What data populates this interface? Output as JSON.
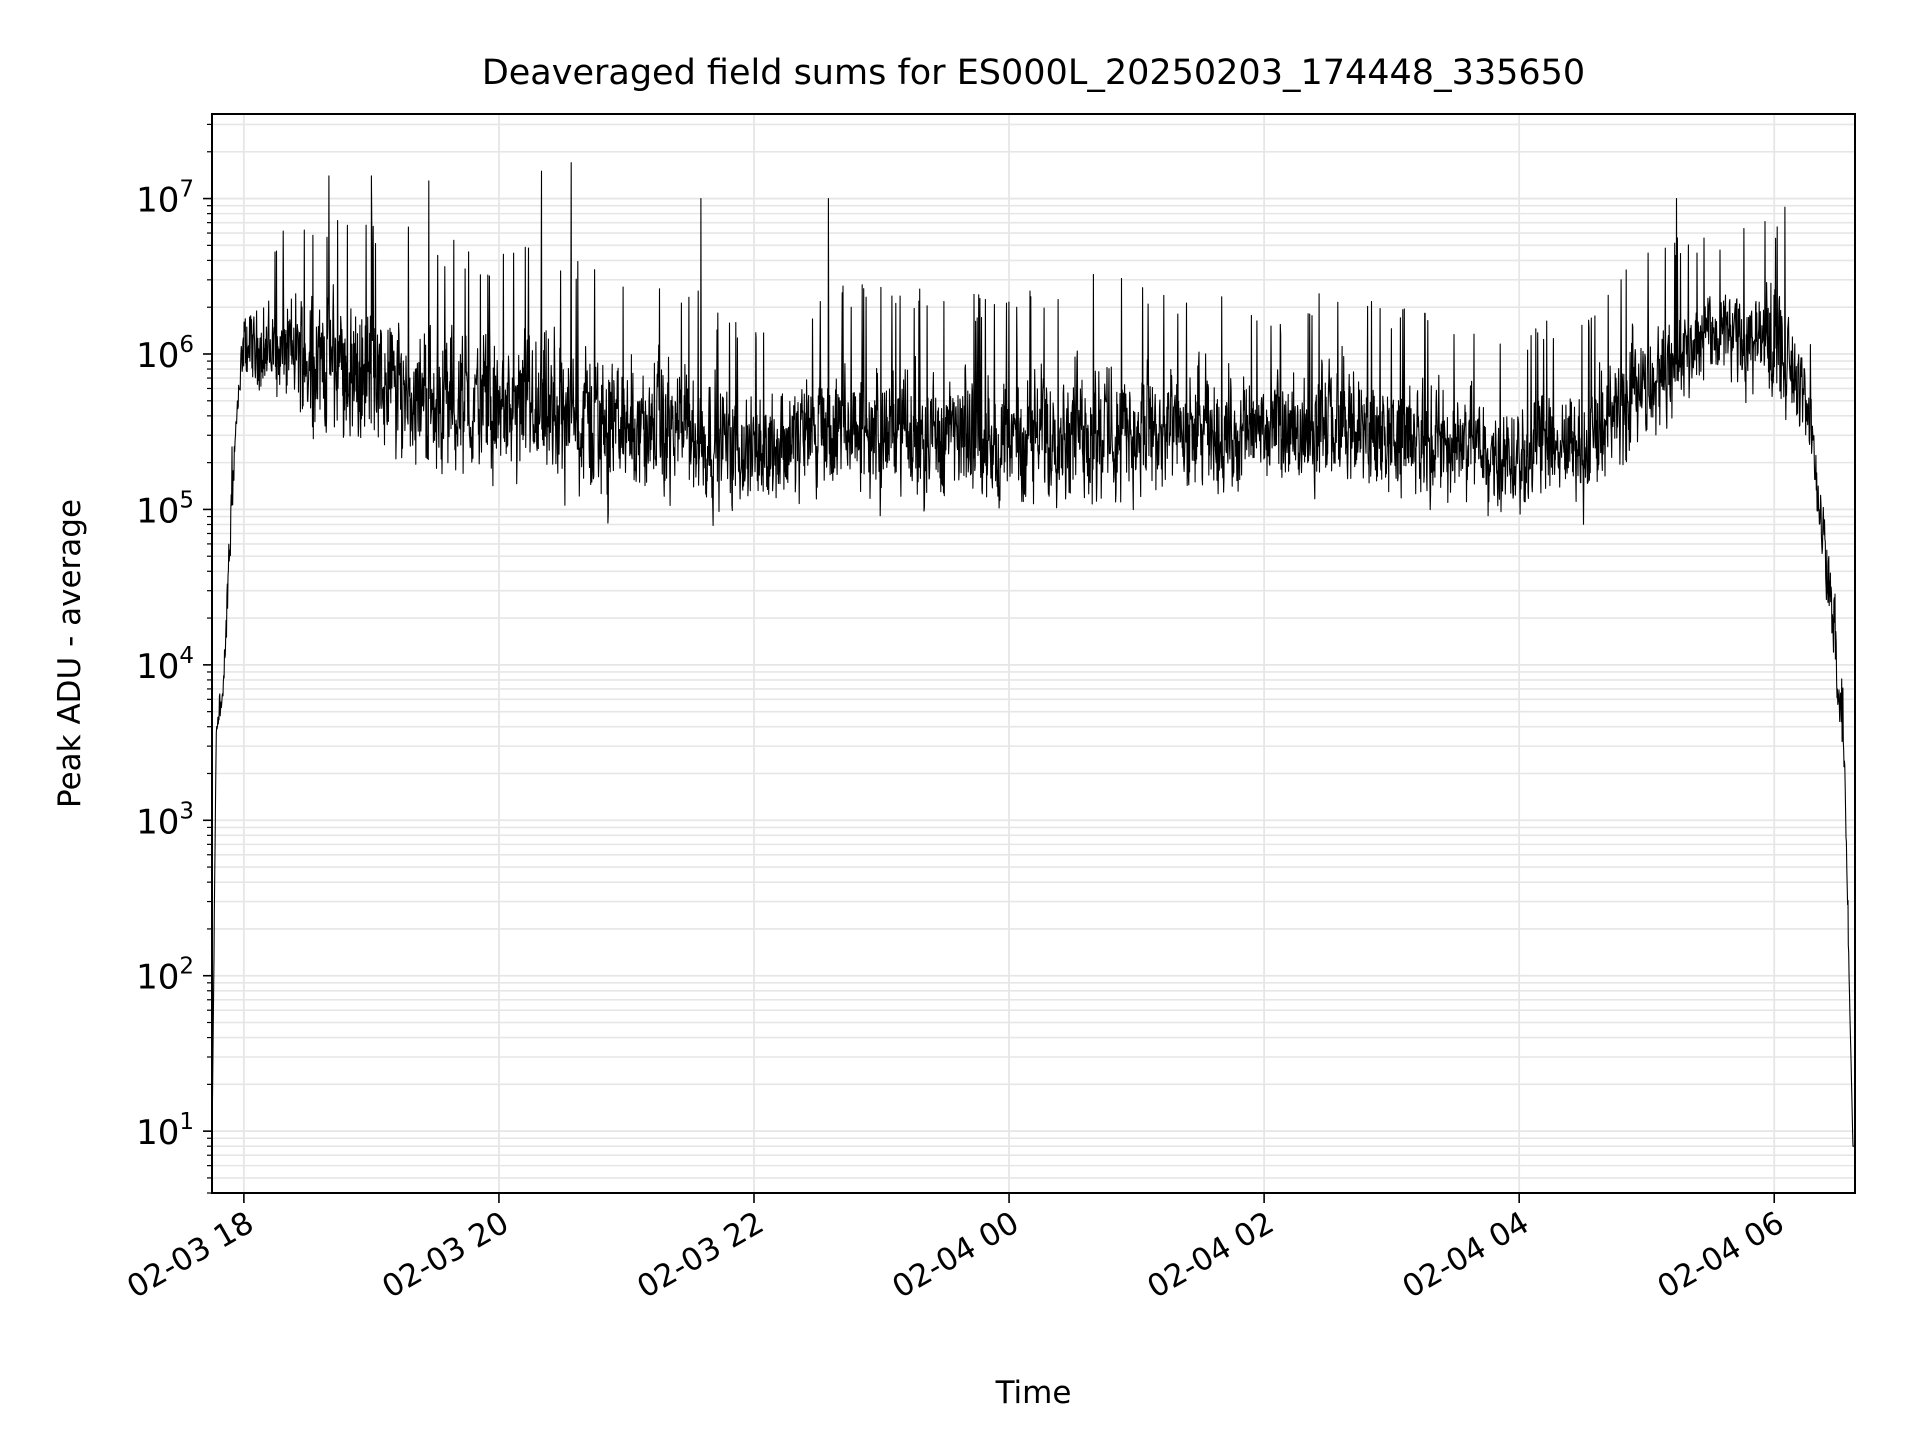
{
  "chart_data": {
    "type": "line",
    "title": "Deaveraged field sums for ES000L_20250203_174448_335650",
    "xlabel": "Time",
    "ylabel": "Peak ADU - average",
    "x_range": [
      "2025-02-03 17:45",
      "2025-02-04 06:38"
    ],
    "y_scale": "log",
    "ylim": [
      4,
      35000000
    ],
    "grid": {
      "major": true,
      "minor_y": true
    },
    "line_color": "#000000",
    "grid_color": "#e6e6e6",
    "x_ticks": [
      {
        "value": "2025-02-03 18:00",
        "label": "02-03 18"
      },
      {
        "value": "2025-02-03 20:00",
        "label": "02-03 20"
      },
      {
        "value": "2025-02-03 22:00",
        "label": "02-03 22"
      },
      {
        "value": "2025-02-04 00:00",
        "label": "02-04 00"
      },
      {
        "value": "2025-02-04 02:00",
        "label": "02-04 02"
      },
      {
        "value": "2025-02-04 04:00",
        "label": "02-04 04"
      },
      {
        "value": "2025-02-04 06:00",
        "label": "02-04 06"
      }
    ],
    "y_ticks": [
      {
        "value": 10,
        "mantissa": "10",
        "exp": "1"
      },
      {
        "value": 100,
        "mantissa": "10",
        "exp": "2"
      },
      {
        "value": 1000,
        "mantissa": "10",
        "exp": "3"
      },
      {
        "value": 10000,
        "mantissa": "10",
        "exp": "4"
      },
      {
        "value": 100000,
        "mantissa": "10",
        "exp": "5"
      },
      {
        "value": 1000000,
        "mantissa": "10",
        "exp": "6"
      },
      {
        "value": 10000000,
        "mantissa": "10",
        "exp": "7"
      }
    ],
    "series": [
      {
        "values_profile": [
          {
            "t": "2025-02-03 17:45",
            "low": 8,
            "high": 8
          },
          {
            "t": "2025-02-03 17:47",
            "low": 3000,
            "high": 4500
          },
          {
            "t": "2025-02-03 17:50",
            "low": 4500,
            "high": 8000
          },
          {
            "t": "2025-02-03 17:53",
            "low": 20000,
            "high": 100000
          },
          {
            "t": "2025-02-03 17:56",
            "low": 200000,
            "high": 500000
          },
          {
            "t": "2025-02-03 18:00",
            "low": 500000,
            "high": 2500000
          },
          {
            "t": "2025-02-03 18:30",
            "low": 200000,
            "high": 5000000
          },
          {
            "t": "2025-02-03 19:00",
            "low": 120000,
            "high": 4000000
          },
          {
            "t": "2025-02-03 19:30",
            "low": 90000,
            "high": 3000000
          },
          {
            "t": "2025-02-03 20:00",
            "low": 70000,
            "high": 2500000
          },
          {
            "t": "2025-02-03 20:30",
            "low": 60000,
            "high": 2500000
          },
          {
            "t": "2025-02-03 21:00",
            "low": 60000,
            "high": 2000000
          },
          {
            "t": "2025-02-03 21:30",
            "low": 65000,
            "high": 1500000
          },
          {
            "t": "2025-02-03 22:00",
            "low": 65000,
            "high": 900000
          },
          {
            "t": "2025-02-03 22:30",
            "low": 65000,
            "high": 1500000
          },
          {
            "t": "2025-02-03 23:00",
            "low": 65000,
            "high": 1500000
          },
          {
            "t": "2025-02-03 23:30",
            "low": 60000,
            "high": 1500000
          },
          {
            "t": "2025-02-04 00:00",
            "low": 60000,
            "high": 1200000
          },
          {
            "t": "2025-02-04 00:30",
            "low": 60000,
            "high": 2000000
          },
          {
            "t": "2025-02-04 01:00",
            "low": 60000,
            "high": 1500000
          },
          {
            "t": "2025-02-04 01:30",
            "low": 60000,
            "high": 1500000
          },
          {
            "t": "2025-02-04 02:00",
            "low": 100000,
            "high": 1000000
          },
          {
            "t": "2025-02-04 02:30",
            "low": 80000,
            "high": 1500000
          },
          {
            "t": "2025-02-04 03:00",
            "low": 70000,
            "high": 1200000
          },
          {
            "t": "2025-02-04 03:30",
            "low": 70000,
            "high": 1000000
          },
          {
            "t": "2025-02-04 04:00",
            "low": 60000,
            "high": 900000
          },
          {
            "t": "2025-02-04 04:30",
            "low": 60000,
            "high": 1000000
          },
          {
            "t": "2025-02-04 05:00",
            "low": 150000,
            "high": 3000000
          },
          {
            "t": "2025-02-04 05:30",
            "low": 500000,
            "high": 4000000
          },
          {
            "t": "2025-02-04 06:00",
            "low": 300000,
            "high": 5000000
          },
          {
            "t": "2025-02-04 06:15",
            "low": 200000,
            "high": 1500000
          },
          {
            "t": "2025-02-04 06:22",
            "low": 40000,
            "high": 200000
          },
          {
            "t": "2025-02-04 06:28",
            "low": 5000,
            "high": 50000
          },
          {
            "t": "2025-02-04 06:33",
            "low": 1500,
            "high": 4000
          },
          {
            "t": "2025-02-04 06:37",
            "low": 8,
            "high": 8
          }
        ],
        "peaks": [
          {
            "t": "2025-02-03 18:40",
            "y": 14000000
          },
          {
            "t": "2025-02-03 19:00",
            "y": 14000000
          },
          {
            "t": "2025-02-03 19:27",
            "y": 13000000
          },
          {
            "t": "2025-02-03 20:20",
            "y": 15000000
          },
          {
            "t": "2025-02-03 20:34",
            "y": 17000000
          },
          {
            "t": "2025-02-03 21:35",
            "y": 10000000
          },
          {
            "t": "2025-02-03 22:35",
            "y": 10000000
          },
          {
            "t": "2025-02-04 05:14",
            "y": 10000000
          },
          {
            "t": "2025-02-04 06:05",
            "y": 8800000
          }
        ]
      }
    ]
  }
}
